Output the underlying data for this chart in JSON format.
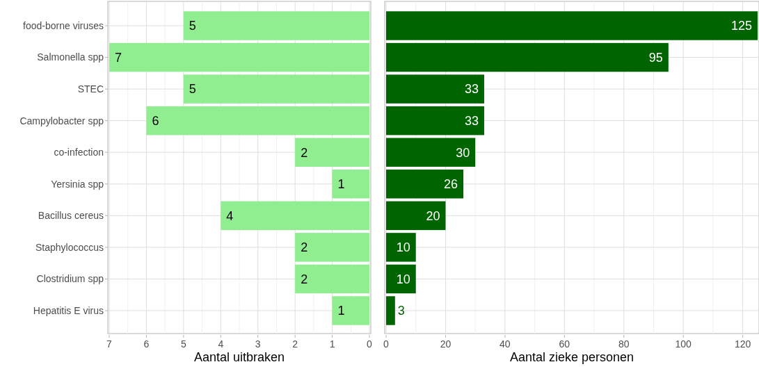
{
  "chart_data": [
    {
      "type": "bar",
      "orientation": "horizontal",
      "categories": [
        "food-borne viruses",
        "Salmonella spp",
        "STEC",
        "Campylobacter spp",
        "co-infection",
        "Yersinia spp",
        "Bacillus cereus",
        "Staphylococcus",
        "Clostridium spp",
        "Hepatitis E virus"
      ],
      "values": [
        5,
        7,
        5,
        6,
        2,
        1,
        4,
        2,
        2,
        1
      ],
      "color": "#90ee90",
      "xlim": [
        7,
        0
      ],
      "xticks": [
        7,
        6,
        5,
        4,
        3,
        2,
        1,
        0
      ],
      "xlabel": "Aantal uitbraken",
      "data_labels": true,
      "grid": true
    },
    {
      "type": "bar",
      "orientation": "horizontal",
      "values": [
        125,
        95,
        33,
        33,
        30,
        26,
        20,
        10,
        10,
        3
      ],
      "color": "#006400",
      "xlim": [
        0,
        125
      ],
      "xticks": [
        0,
        20,
        40,
        60,
        80,
        100,
        120
      ],
      "xlabel": "Aantal zieke personen",
      "data_labels": true,
      "grid": true,
      "tick_labels": "x"
    }
  ]
}
